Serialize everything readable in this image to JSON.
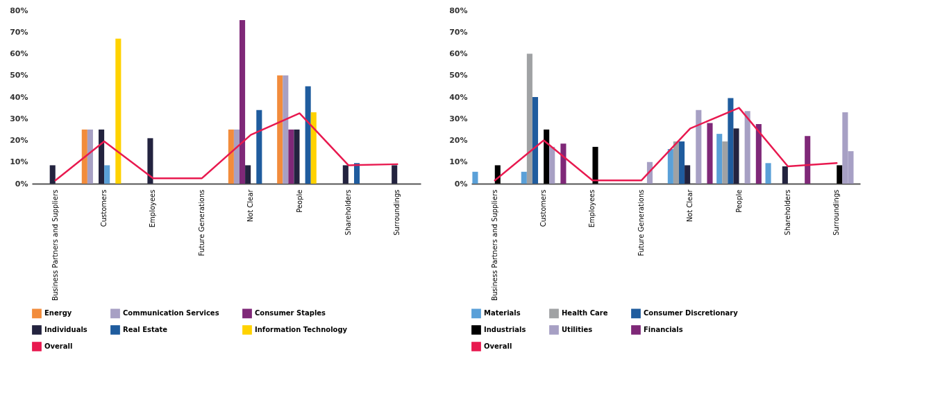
{
  "chart_data": [
    {
      "type": "bar",
      "categories": [
        "Business Partners  and Suppliers",
        "Customers",
        "Employees",
        "Future Generations",
        "Not Clear",
        "People",
        "Shareholders",
        "Surroundings"
      ],
      "series": [
        {
          "name": "Energy",
          "color": "#f28c3c",
          "values": [
            null,
            25,
            null,
            null,
            25,
            50,
            null,
            null
          ]
        },
        {
          "name": "Communication Services",
          "color": "#a7a0c4",
          "values": [
            null,
            25,
            null,
            null,
            25,
            50,
            null,
            null
          ]
        },
        {
          "name": "Consumer Staples",
          "color": "#7f2878",
          "values": [
            null,
            null,
            null,
            null,
            75.5,
            25,
            null,
            null
          ]
        },
        {
          "name": "Individuals",
          "color": "#23233f",
          "values": [
            8.5,
            25,
            21,
            null,
            8.5,
            25,
            8.5,
            8.5
          ]
        },
        {
          "color": "#5aa0d8",
          "values": [
            null,
            8.5,
            null,
            null,
            null,
            null,
            null,
            null
          ]
        },
        {
          "name": "Real Estate",
          "color": "#1f5c9e",
          "values": [
            null,
            null,
            null,
            null,
            34,
            45,
            9.5,
            null
          ]
        },
        {
          "name": "Information Technology",
          "color": "#ffd200",
          "values": [
            null,
            67,
            null,
            null,
            null,
            33,
            null,
            null
          ]
        },
        {
          "name": "Overall",
          "type": "line",
          "color": "#e8194f",
          "values": [
            1.5,
            19.5,
            2.5,
            2.5,
            22.5,
            32.5,
            8.5,
            9
          ]
        }
      ],
      "ylim": [
        0,
        80
      ],
      "yticks": [
        {
          "value": 0,
          "label": "0%"
        },
        {
          "value": 10,
          "label": "10%"
        },
        {
          "value": 20,
          "label": "20%"
        },
        {
          "value": 30,
          "label": "30%"
        },
        {
          "value": 40,
          "label": "40%"
        },
        {
          "value": 50,
          "label": "50%"
        },
        {
          "value": 60,
          "label": "60%"
        },
        {
          "value": 70,
          "label": "70%"
        },
        {
          "value": 80,
          "label": "80%"
        }
      ],
      "grid": false,
      "legend": "bottom left"
    },
    {
      "type": "bar",
      "categories": [
        "Business Partners  and Suppliers",
        "Customers",
        "Employees",
        "Future Generations",
        "Not Clear",
        "People",
        "Shareholders",
        "Surroundings"
      ],
      "series": [
        {
          "name": "Materials",
          "color": "#5aa0d8",
          "values": [
            5.5,
            5.5,
            null,
            null,
            16,
            23,
            9.5,
            null
          ]
        },
        {
          "name": "Health Care",
          "color": "#a0a2a4",
          "values": [
            null,
            60,
            null,
            null,
            19.5,
            19.5,
            null,
            null
          ]
        },
        {
          "name": "Consumer Discretionary",
          "color": "#1f5c9e",
          "values": [
            null,
            40,
            null,
            null,
            19.5,
            39.5,
            null,
            null
          ]
        },
        {
          "color": "#23233f",
          "values": [
            null,
            null,
            null,
            null,
            8.5,
            25.5,
            8,
            null
          ]
        },
        {
          "name": "Industrials",
          "color": "#000000",
          "values": [
            8.5,
            25,
            17,
            null,
            null,
            null,
            null,
            8.5
          ]
        },
        {
          "name": "Utilities",
          "color": "#a7a0c4",
          "values": [
            null,
            17,
            null,
            10,
            34,
            33.5,
            null,
            33
          ]
        },
        {
          "color": "#a7a0c5",
          "values": [
            null,
            null,
            null,
            null,
            null,
            null,
            null,
            15
          ]
        },
        {
          "name": "Financials",
          "color": "#7f2878",
          "values": [
            null,
            18.5,
            null,
            null,
            28,
            27.5,
            22,
            null
          ]
        },
        {
          "name": "Overall",
          "type": "line",
          "color": "#e8194f",
          "values": [
            1.5,
            20,
            1.5,
            1.5,
            25.5,
            35,
            8,
            9.5
          ]
        }
      ],
      "ylim": [
        0,
        80
      ],
      "yticks": [
        {
          "value": 0,
          "label": "0%"
        },
        {
          "value": 10,
          "label": "10%"
        },
        {
          "value": 20,
          "label": "20%"
        },
        {
          "value": 30,
          "label": "30%"
        },
        {
          "value": 40,
          "label": "40%"
        },
        {
          "value": 50,
          "label": "50%"
        },
        {
          "value": 60,
          "label": "60%"
        },
        {
          "value": 70,
          "label": "70%"
        },
        {
          "value": 80,
          "label": "80%"
        }
      ],
      "grid": false,
      "legend": "bottom left"
    }
  ]
}
